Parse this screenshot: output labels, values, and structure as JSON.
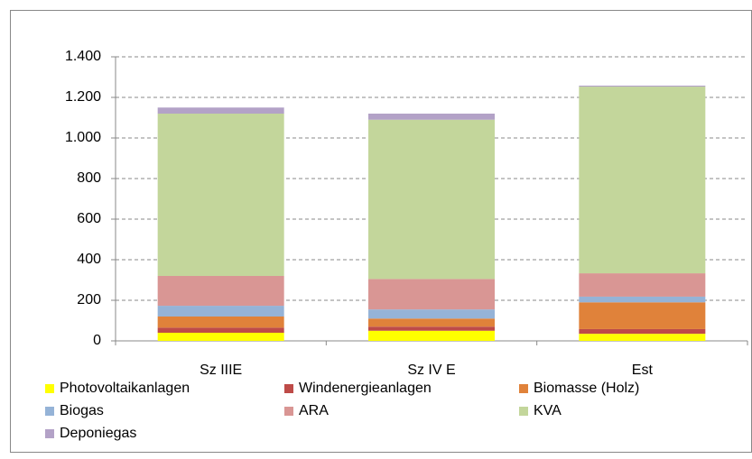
{
  "chart_data": {
    "type": "bar",
    "stacked": true,
    "categories": [
      "Sz IIIE",
      "Sz IV E",
      "Est"
    ],
    "series": [
      {
        "name": "Photovoltaikanlagen",
        "color": "#ffff00",
        "values": [
          40,
          50,
          35
        ]
      },
      {
        "name": "Windenergieanlagen",
        "color": "#be4b48",
        "values": [
          25,
          20,
          23
        ]
      },
      {
        "name": "Biomasse (Holz)",
        "color": "#e0823a",
        "values": [
          55,
          40,
          132
        ]
      },
      {
        "name": "Biogas",
        "color": "#95b3d7",
        "values": [
          53,
          45,
          28
        ]
      },
      {
        "name": "ARA",
        "color": "#d99694",
        "values": [
          147,
          150,
          115
        ]
      },
      {
        "name": "KVA",
        "color": "#c3d69b",
        "values": [
          800,
          785,
          920
        ]
      },
      {
        "name": "Deponiegas",
        "color": "#b3a2c7",
        "values": [
          30,
          30,
          5
        ]
      }
    ],
    "ylim": [
      0,
      1400
    ],
    "yticks": [
      0,
      200,
      400,
      600,
      800,
      {
        "value": 1000,
        "label": "1.000"
      },
      {
        "value": 1200,
        "label": "1.200"
      },
      {
        "value": 1400,
        "label": "1.400"
      }
    ],
    "grid": true,
    "legend": "bottom"
  }
}
